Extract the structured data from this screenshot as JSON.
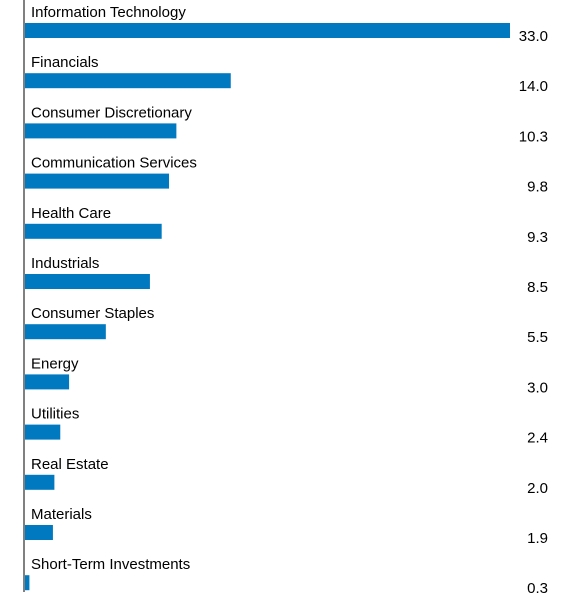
{
  "chart_data": {
    "type": "bar",
    "orientation": "horizontal",
    "categories": [
      "Information Technology",
      "Financials",
      "Consumer Discretionary",
      "Communication Services",
      "Health Care",
      "Industrials",
      "Consumer Staples",
      "Energy",
      "Utilities",
      "Real Estate",
      "Materials",
      "Short-Term Investments"
    ],
    "values": [
      33.0,
      14.0,
      10.3,
      9.8,
      9.3,
      8.5,
      5.5,
      3.0,
      2.4,
      2.0,
      1.9,
      0.3
    ],
    "value_labels": [
      "33.0",
      "14.0",
      "10.3",
      "9.8",
      "9.3",
      "8.5",
      "5.5",
      "3.0",
      "2.4",
      "2.0",
      "1.9",
      "0.3"
    ],
    "xlim": [
      0,
      33.0
    ],
    "grid": false,
    "legend": "none",
    "bar_color": "#0079C1",
    "axis_color": "#000000"
  }
}
